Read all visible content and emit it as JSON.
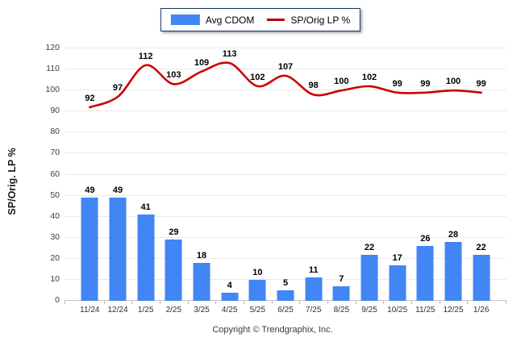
{
  "legend": {
    "items": [
      {
        "label": "Avg CDOM",
        "type": "bar"
      },
      {
        "label": "SP/Orig LP %",
        "type": "line"
      }
    ]
  },
  "y_axis_title": "SP/Orig. LP %",
  "footer": "Copyright © Trendgraphix, Inc.",
  "colors": {
    "bar": "#4285F4",
    "line": "#CC0000",
    "legend_line_swatch": "#B00000",
    "legend_border": "#17365D",
    "grid": "#EAEAEA",
    "axis": "#C6C6C6"
  },
  "chart_data": {
    "type": "bar+line",
    "title": "",
    "xlabel": "",
    "ylabel": "SP/Orig. LP %",
    "categories": [
      "11/24",
      "12/24",
      "1/25",
      "2/25",
      "3/25",
      "4/25",
      "5/25",
      "6/25",
      "7/25",
      "8/25",
      "9/25",
      "10/25",
      "11/25",
      "12/25",
      "1/26"
    ],
    "series": [
      {
        "name": "Avg CDOM",
        "type": "bar",
        "color": "#4285F4",
        "values": [
          49,
          49,
          41,
          29,
          18,
          4,
          10,
          5,
          11,
          7,
          22,
          17,
          26,
          28,
          22
        ]
      },
      {
        "name": "SP/Orig LP %",
        "type": "line",
        "color": "#CC0000",
        "values": [
          92,
          97,
          112,
          103,
          109,
          113,
          102,
          107,
          98,
          100,
          102,
          99,
          99,
          100,
          99
        ]
      }
    ],
    "ylim": [
      0,
      120
    ],
    "y_ticks": [
      0,
      10,
      20,
      30,
      40,
      50,
      60,
      70,
      80,
      90,
      100,
      110,
      120
    ],
    "grid": "horizontal",
    "legend_position": "top-center",
    "data_labels": true
  }
}
